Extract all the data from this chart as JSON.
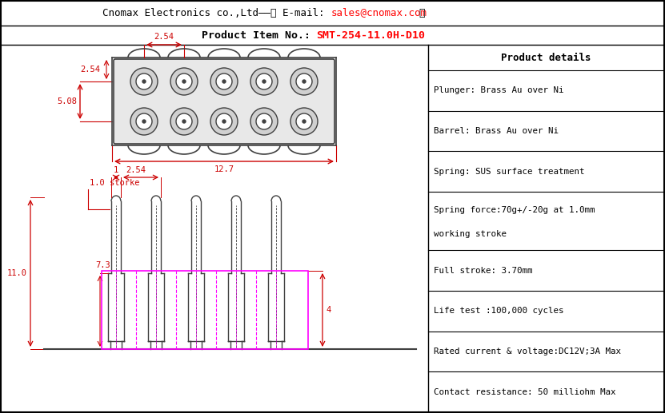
{
  "title_line1_normal": "Cnomax Electronics co.,Ltd——（ E-mail: ",
  "title_line1_red": "sales@cnomax.com",
  "title_line1_end": "）",
  "title_line2_normal": "Product Item No.: ",
  "title_line2_red": "SMT-254-11.0H-D10",
  "product_details_title": "Product details",
  "product_details": [
    "Plunger: Brass Au over Ni",
    "Barrel: Brass Au over Ni",
    "Spring: SUS surface treatment",
    "Spring force:70g+/-20g at 1.0mm\nworking stroke",
    "Full stroke: 3.70mm",
    "Life test :100,000 cycles",
    "Rated current & voltage:DC12V;3A Max",
    "Contact resistance: 50 milliohm Max"
  ],
  "bg_color": "#ffffff",
  "border_color": "#000000",
  "dim_color": "#cc0000",
  "draw_color": "#404040",
  "magenta_color": "#ff00ff",
  "fig_w": 8.31,
  "fig_h": 5.17,
  "dpi": 100
}
